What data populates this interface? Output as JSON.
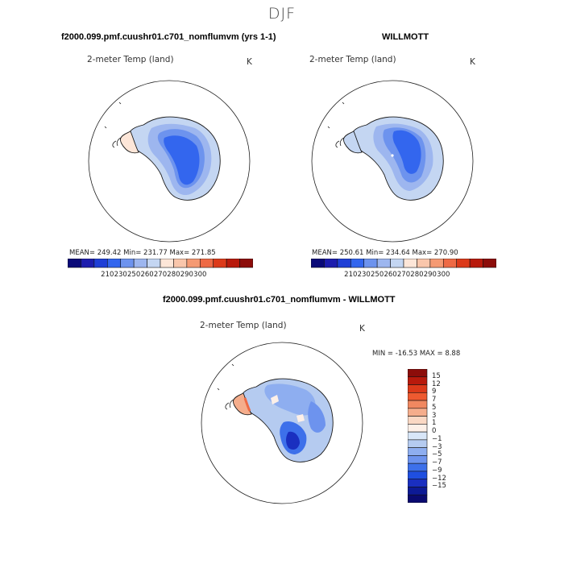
{
  "figure": {
    "season": "DJF",
    "bottom_title": "f2000.099.pmf.cuushr01.c701_nomflumvm - WILLMOTT"
  },
  "panels": [
    {
      "title": "f2000.099.pmf.cuushr01.c701_nomflumvm (yrs 1-1)",
      "variable": "2-meter Temp (land)",
      "units": "K",
      "stats": {
        "mean": "249.42",
        "min": "231.77",
        "max": "271.85"
      },
      "stats_text": "MEAN= 249.42   Min= 231.77   Max= 271.85"
    },
    {
      "title": "WILLMOTT",
      "variable": "2-meter Temp (land)",
      "units": "K",
      "stats": {
        "mean": "250.61",
        "min": "234.64",
        "max": "270.90"
      },
      "stats_text": "MEAN= 250.61   Min= 234.64   Max= 270.90"
    },
    {
      "title": "",
      "variable": "2-meter Temp (land)",
      "units": "K",
      "stats": {
        "min": "-16.53",
        "max": "8.88"
      },
      "stats_text": "MIN = -16.53 MAX =   8.88"
    }
  ],
  "colorbar_abs": {
    "colors": [
      "#0a0a78",
      "#1d1dad",
      "#1f3fd6",
      "#3366ee",
      "#6d93ee",
      "#9db6ef",
      "#c4d6f2",
      "#fde6d8",
      "#f9c6ab",
      "#f59a73",
      "#ee6a45",
      "#dc3a1a",
      "#b81a0c",
      "#8c0d0a"
    ],
    "tick_labels": [
      "210",
      "230",
      "250",
      "260",
      "270",
      "280",
      "290",
      "300"
    ]
  },
  "colorbar_diff": {
    "colors": [
      "#8c0d0a",
      "#b81a0c",
      "#dc3a1a",
      "#ee5a30",
      "#f08860",
      "#f5ad8c",
      "#fad8c4",
      "#fdf0e8",
      "#d8e6f8",
      "#b5cbf0",
      "#8eaef0",
      "#6d93ee",
      "#3d70ea",
      "#1f4fe0",
      "#1a2fc0",
      "#0d1a95",
      "#0a0a70"
    ],
    "tick_labels": [
      "15",
      "12",
      "9",
      "7",
      "5",
      "3",
      "1",
      "0",
      "−1",
      "−3",
      "−5",
      "−7",
      "−9",
      "−12",
      "−15"
    ]
  },
  "map_colors": {
    "coast": "#1a1a1a",
    "circle": "#222222"
  }
}
